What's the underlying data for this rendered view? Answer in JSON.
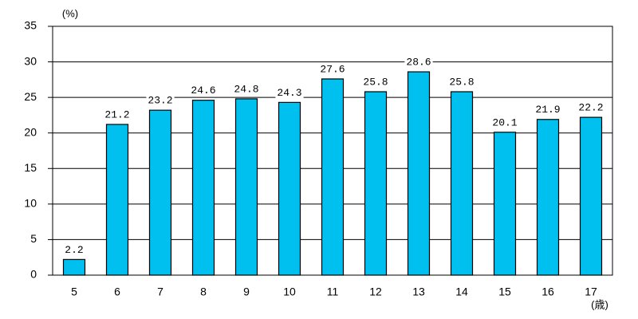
{
  "chart_data": {
    "type": "bar",
    "y_unit": "(%)",
    "x_unit": "(歳)",
    "categories": [
      "5",
      "6",
      "7",
      "8",
      "9",
      "10",
      "11",
      "12",
      "13",
      "14",
      "15",
      "16",
      "17"
    ],
    "values": [
      2.2,
      21.2,
      23.2,
      24.6,
      24.8,
      24.3,
      27.6,
      25.8,
      28.6,
      25.8,
      20.1,
      21.9,
      22.2
    ],
    "color": "#00c0f0",
    "ylim": [
      0,
      35
    ],
    "yticks": [
      0,
      5,
      10,
      15,
      20,
      25,
      30,
      35
    ],
    "grid": true
  }
}
